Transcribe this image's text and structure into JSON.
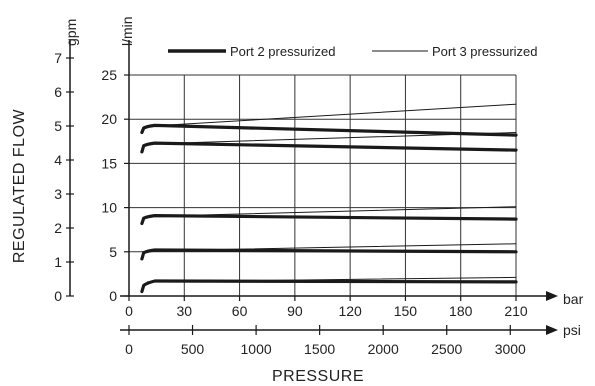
{
  "chart_data": {
    "type": "line",
    "xlabel": "PRESSURE",
    "ylabel": "REGULATED FLOW",
    "x_units": [
      "bar",
      "psi"
    ],
    "y_units": [
      "gpm",
      "l/min"
    ],
    "x_bar": {
      "lim": [
        0,
        210
      ],
      "ticks": [
        0,
        30,
        60,
        90,
        120,
        150,
        180,
        210
      ]
    },
    "x_psi": {
      "lim": [
        0,
        3045
      ],
      "ticks": [
        0,
        500,
        1000,
        1500,
        2000,
        2500,
        3000
      ]
    },
    "y_lpm": {
      "lim": [
        0,
        25
      ],
      "ticks": [
        0,
        5,
        10,
        15,
        20,
        25
      ]
    },
    "y_gpm": {
      "lim": [
        0,
        6.6
      ],
      "ticks": [
        0,
        1,
        2,
        3,
        4,
        5,
        6,
        7
      ]
    },
    "grid": true,
    "legend_position": "top",
    "series": [
      {
        "name": "Port 2 pressurized",
        "style": "thick",
        "groups": [
          {
            "x": [
              7,
              8,
              10,
              14,
              210
            ],
            "y": [
              0.5,
              1.2,
              1.5,
              1.7,
              1.6
            ]
          },
          {
            "x": [
              7,
              8,
              10,
              14,
              210
            ],
            "y": [
              4.2,
              4.9,
              5.1,
              5.2,
              5.0
            ]
          },
          {
            "x": [
              7,
              8,
              10,
              14,
              210
            ],
            "y": [
              8.2,
              8.8,
              9.0,
              9.1,
              8.7
            ]
          },
          {
            "x": [
              7,
              8,
              10,
              14,
              210
            ],
            "y": [
              16.3,
              17.0,
              17.2,
              17.3,
              16.5
            ]
          },
          {
            "x": [
              7,
              8,
              10,
              14,
              210
            ],
            "y": [
              18.5,
              19.0,
              19.2,
              19.3,
              18.2
            ]
          }
        ]
      },
      {
        "name": "Port 3 pressurized",
        "style": "thin",
        "groups": [
          {
            "x": [
              10,
              210
            ],
            "y": [
              1.6,
              2.1
            ]
          },
          {
            "x": [
              10,
              210
            ],
            "y": [
              5.1,
              5.9
            ]
          },
          {
            "x": [
              10,
              210
            ],
            "y": [
              9.0,
              10.1
            ]
          },
          {
            "x": [
              10,
              210
            ],
            "y": [
              17.2,
              18.5
            ]
          },
          {
            "x": [
              10,
              210
            ],
            "y": [
              19.2,
              21.7
            ]
          }
        ]
      }
    ]
  }
}
